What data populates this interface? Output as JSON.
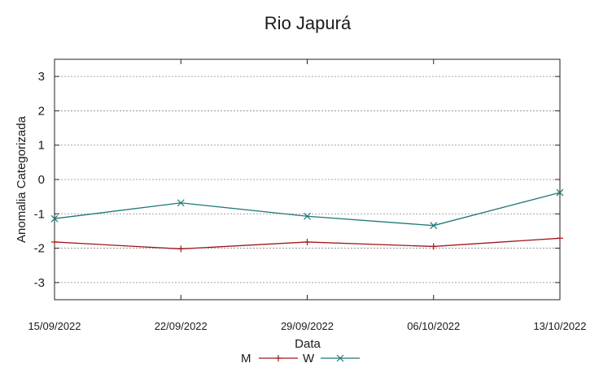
{
  "chart_data": {
    "type": "line",
    "title": "Rio Japurá",
    "xlabel": "Data",
    "ylabel": "Anomalia Categorizada",
    "categories": [
      "15/09/2022",
      "22/09/2022",
      "29/09/2022",
      "06/10/2022",
      "13/10/2022"
    ],
    "ylim": [
      -3.5,
      3.5
    ],
    "yticks": [
      "-3",
      "-2",
      "-1",
      "0",
      "1",
      "2",
      "3"
    ],
    "grid": true,
    "legend_position": "bottom-center",
    "series": [
      {
        "name": "M",
        "values": [
          -1.82,
          -2.02,
          -1.82,
          -1.95,
          -1.71
        ],
        "color": "#a0181c",
        "marker": "plus"
      },
      {
        "name": "W",
        "values": [
          -1.14,
          -0.68,
          -1.07,
          -1.34,
          -0.38
        ],
        "color": "#1f7676",
        "marker": "cross"
      }
    ]
  }
}
